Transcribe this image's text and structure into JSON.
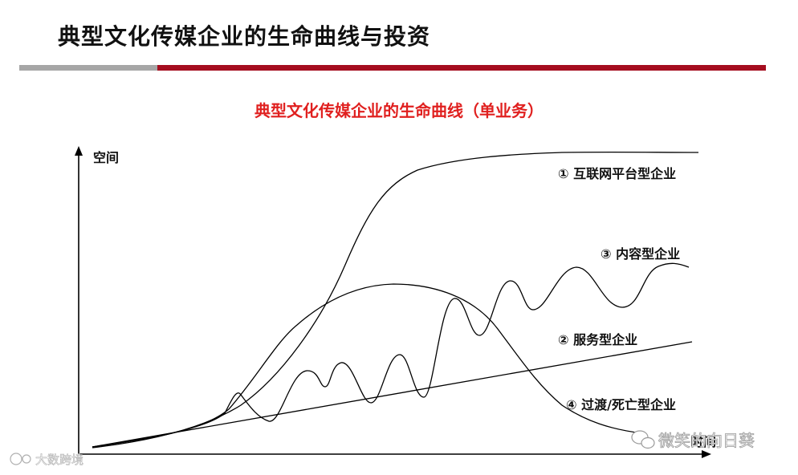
{
  "header": {
    "title": "典型文化传媒企业的生命曲线与投资"
  },
  "diagram": {
    "subtitle": "典型文化传媒企业的生命曲线（单业务）",
    "y_axis_label": "空间",
    "x_axis_label": "时间",
    "curves": {
      "platform": "① 互联网平台型企业",
      "content": "③ 内容型企业",
      "service": "② 服务型企业",
      "transition": "④ 过渡/死亡型企业"
    }
  },
  "watermarks": {
    "right": "微笑的向日葵",
    "left": "大数跨境"
  },
  "colors": {
    "title_bar_grey": "#a6a6a6",
    "title_bar_red": "#a50d1f",
    "subtitle_red": "#e0201f"
  }
}
